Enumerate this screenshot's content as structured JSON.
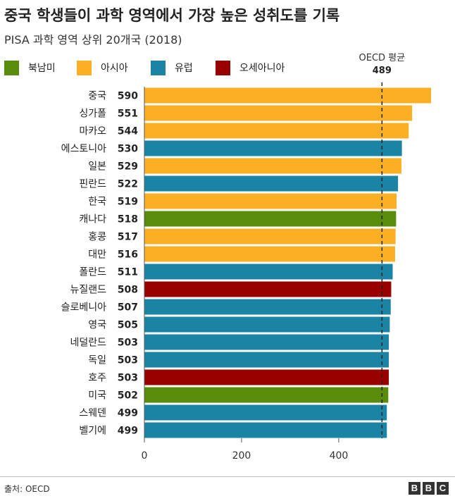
{
  "header": {
    "title": "중국 학생들이 과학 영역에서 가장 높은 성취도를 기록",
    "subtitle": "PISA 과학 영역 상위 20개국 (2018)"
  },
  "legend": [
    {
      "label": "북남미",
      "color": "#588c0a"
    },
    {
      "label": "아시아",
      "color": "#fbb024"
    },
    {
      "label": "유럽",
      "color": "#1b84a4"
    },
    {
      "label": "오세아니아",
      "color": "#990000"
    }
  ],
  "reference": {
    "label": "OECD 평균",
    "value": 489
  },
  "chart_data": {
    "type": "bar",
    "orientation": "horizontal",
    "title": "중국 학생들이 과학 영역에서 가장 높은 성취도를 기록",
    "subtitle": "PISA 과학 영역 상위 20개국 (2018)",
    "xlabel": "",
    "ylabel": "",
    "xlim": [
      0,
      590
    ],
    "xticks": [
      0,
      200,
      400
    ],
    "reference_line": {
      "label": "OECD 평균",
      "value": 489,
      "style": "dashed"
    },
    "categories": [
      "중국",
      "싱가폴",
      "마카오",
      "에스토니아",
      "일본",
      "핀란드",
      "한국",
      "캐나다",
      "홍콩",
      "대만",
      "폴란드",
      "뉴질랜드",
      "슬로베니아",
      "영국",
      "네덜란드",
      "독일",
      "호주",
      "미국",
      "스웨덴",
      "벨기에"
    ],
    "values": [
      590,
      551,
      544,
      530,
      529,
      522,
      519,
      518,
      517,
      516,
      511,
      508,
      507,
      505,
      503,
      503,
      503,
      502,
      499,
      499
    ],
    "regions": [
      "아시아",
      "아시아",
      "아시아",
      "유럽",
      "아시아",
      "유럽",
      "아시아",
      "북남미",
      "아시아",
      "아시아",
      "유럽",
      "오세아니아",
      "유럽",
      "유럽",
      "유럽",
      "유럽",
      "오세아니아",
      "북남미",
      "유럽",
      "유럽"
    ]
  },
  "footer": {
    "source": "출처: OECD",
    "logo_letters": [
      "B",
      "B",
      "C"
    ]
  }
}
